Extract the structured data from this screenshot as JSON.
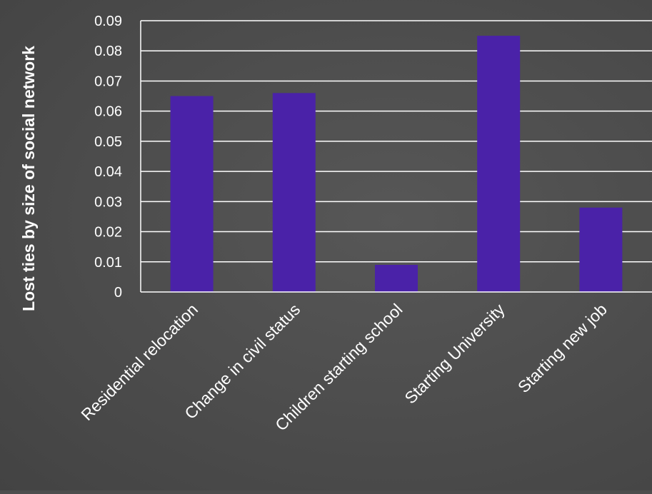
{
  "chart_data": {
    "type": "bar",
    "title": "",
    "xlabel": "",
    "ylabel": "Lost ties by size of social network",
    "categories": [
      "Residential relocation",
      "Change in civil status",
      "Children starting school",
      "Starting University",
      "Starting new job"
    ],
    "values": [
      0.065,
      0.066,
      0.009,
      0.085,
      0.028
    ],
    "ylim": [
      0,
      0.09
    ],
    "yticks": [
      "0",
      "0.01",
      "0.02",
      "0.03",
      "0.04",
      "0.05",
      "0.06",
      "0.07",
      "0.08",
      "0.09"
    ],
    "grid": true,
    "legend": "none",
    "colors": {
      "bar": "#4a22a8",
      "grid": "#ffffff",
      "text": "#ffffff",
      "background": "#4d4d4d"
    }
  }
}
